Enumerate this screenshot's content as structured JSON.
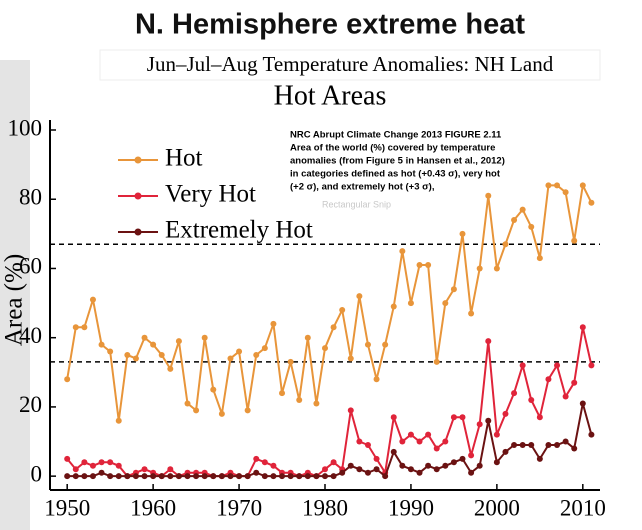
{
  "chart_data": {
    "type": "line",
    "slide_title": "N. Hemisphere extreme heat",
    "subtitle": "Jun–Jul–Aug Temperature Anomalies: NH Land",
    "title": "Hot Areas",
    "y_label": "Area (%)",
    "note": [
      "NRC Abrupt Climate Change 2013 FIGURE 2.11",
      "Area of the world (%) covered by temperature",
      "anomalies (from Figure 5 in Hansen et al., 2012)",
      "in categories defined as hot (+0.43 σ), very hot",
      "(+2 σ), and extremely hot (+3 σ),"
    ],
    "overlay_text": "Rectangular Snip",
    "x": [
      1950,
      1951,
      1952,
      1953,
      1954,
      1955,
      1956,
      1957,
      1958,
      1959,
      1960,
      1961,
      1962,
      1963,
      1964,
      1965,
      1966,
      1967,
      1968,
      1969,
      1970,
      1971,
      1972,
      1973,
      1974,
      1975,
      1976,
      1977,
      1978,
      1979,
      1980,
      1981,
      1982,
      1983,
      1984,
      1985,
      1986,
      1987,
      1988,
      1989,
      1990,
      1991,
      1992,
      1993,
      1994,
      1995,
      1996,
      1997,
      1998,
      1999,
      2000,
      2001,
      2002,
      2003,
      2004,
      2005,
      2006,
      2007,
      2008,
      2009,
      2010,
      2011
    ],
    "series": [
      {
        "name": "Hot",
        "color": "#e8953a",
        "values": [
          28,
          43,
          43,
          51,
          38,
          36,
          16,
          35,
          34,
          40,
          38,
          35,
          31,
          39,
          21,
          19,
          40,
          25,
          18,
          34,
          36,
          19,
          35,
          37,
          44,
          24,
          33,
          22,
          40,
          21,
          37,
          43,
          48,
          34,
          52,
          38,
          28,
          38,
          49,
          65,
          50,
          61,
          61,
          33,
          50,
          54,
          70,
          47,
          60,
          81,
          60,
          67,
          74,
          77,
          72,
          63,
          84,
          84,
          82,
          68,
          84,
          79
        ]
      },
      {
        "name": "Very Hot",
        "color": "#e0243a",
        "values": [
          5,
          2,
          4,
          3,
          4,
          4,
          3,
          0,
          1,
          2,
          1,
          0,
          2,
          0,
          1,
          1,
          1,
          0,
          0,
          1,
          0,
          0,
          5,
          4,
          3,
          1,
          1,
          0,
          1,
          0,
          2,
          4,
          2,
          19,
          10,
          9,
          5,
          1,
          17,
          10,
          12,
          10,
          12,
          8,
          10,
          17,
          17,
          6,
          15,
          39,
          12,
          18,
          24,
          32,
          22,
          17,
          28,
          32,
          23,
          27,
          43,
          32
        ]
      },
      {
        "name": "Extremely Hot",
        "color": "#6b1212",
        "values": [
          0,
          0,
          0,
          0,
          1,
          0,
          0,
          0,
          0,
          0,
          0,
          0,
          0,
          0,
          0,
          0,
          0,
          0,
          0,
          0,
          0,
          0,
          1,
          0,
          0,
          0,
          0,
          0,
          0,
          0,
          0,
          0,
          1,
          3,
          2,
          1,
          2,
          0,
          7,
          3,
          2,
          1,
          3,
          2,
          3,
          4,
          5,
          1,
          3,
          16,
          4,
          7,
          9,
          9,
          9,
          5,
          9,
          9,
          10,
          8,
          21,
          12
        ]
      }
    ],
    "reference_lines": [
      33,
      67
    ],
    "xlim": [
      1948,
      2012
    ],
    "xticks": [
      1950,
      1960,
      1970,
      1980,
      1990,
      2000,
      2010
    ],
    "ylim": [
      -4,
      100
    ],
    "yticks": [
      0,
      20,
      40,
      60,
      80,
      100
    ],
    "legend": "upper left"
  }
}
